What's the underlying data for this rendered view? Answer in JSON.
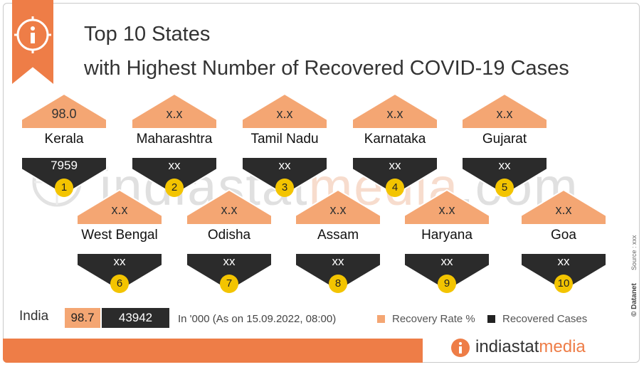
{
  "title": {
    "line1": "Top 10 States",
    "line2": "with Highest Number of Recovered COVID-19 Cases"
  },
  "chart_data": {
    "type": "table",
    "columns": [
      "Recovery Rate %",
      "Recovered Cases"
    ],
    "states": [
      {
        "rank": "1",
        "name": "Kerala",
        "rate": "98.0",
        "cases": "7959"
      },
      {
        "rank": "2",
        "name": "Maharashtra",
        "rate": "x.x",
        "cases": "xx"
      },
      {
        "rank": "3",
        "name": "Tamil Nadu",
        "rate": "x.x",
        "cases": "xx"
      },
      {
        "rank": "4",
        "name": "Karnataka",
        "rate": "x.x",
        "cases": "xx"
      },
      {
        "rank": "5",
        "name": "Gujarat",
        "rate": "x.x",
        "cases": "xx"
      },
      {
        "rank": "6",
        "name": "West Bengal",
        "rate": "x.x",
        "cases": "xx"
      },
      {
        "rank": "7",
        "name": "Odisha",
        "rate": "x.x",
        "cases": "xx"
      },
      {
        "rank": "8",
        "name": "Assam",
        "rate": "x.x",
        "cases": "xx"
      },
      {
        "rank": "9",
        "name": "Haryana",
        "rate": "x.x",
        "cases": "xx"
      },
      {
        "rank": "10",
        "name": "Goa",
        "rate": "x.x",
        "cases": "xx"
      }
    ],
    "india": {
      "label": "India",
      "rate": "98.7",
      "cases": "43942"
    },
    "note": "In '000 (As on 15.09.2022, 08:00)",
    "legend": [
      {
        "label": "Recovery Rate %",
        "color": "#f4a673"
      },
      {
        "label": "Recovered Cases",
        "color": "#222222"
      }
    ]
  },
  "colors": {
    "accent": "#ee7d47",
    "rate_fill": "#f4a673",
    "cases_fill": "#2b2b2b",
    "rank_badge": "#f3c400"
  },
  "watermark": {
    "part1": "indiastat",
    "part2": "media",
    "part3": ".com"
  },
  "brand": {
    "name1": "indiastat",
    "name2": "media",
    "datanet": "© Datanet",
    "source": "Source : xxx"
  },
  "icons": {
    "header": "info-icon",
    "brand": "info-icon"
  }
}
